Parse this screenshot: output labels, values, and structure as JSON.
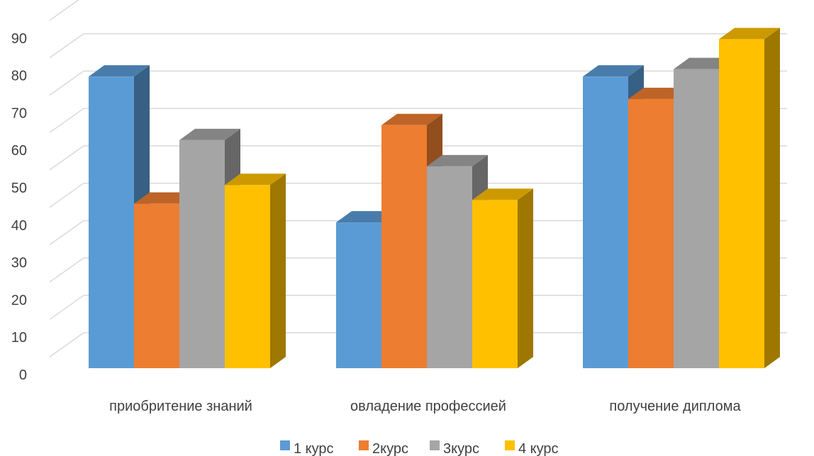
{
  "chart_data": {
    "type": "bar",
    "title": "",
    "xlabel": "",
    "ylabel": "",
    "ylim": [
      0,
      90
    ],
    "yticks": [
      0,
      10,
      20,
      30,
      40,
      50,
      60,
      70,
      80,
      90
    ],
    "grid": true,
    "legend_position": "bottom",
    "style": "3d-clustered-column",
    "categories": [
      "приобритение знаний",
      "овладение профессией",
      "получение диплома"
    ],
    "series": [
      {
        "name": "1 курс",
        "values": [
          78,
          39,
          78
        ],
        "color": "#5B9BD5"
      },
      {
        "name": "2курс",
        "values": [
          44,
          65,
          72
        ],
        "color": "#ED7D31"
      },
      {
        "name": "3курс",
        "values": [
          61,
          54,
          80
        ],
        "color": "#A5A5A5"
      },
      {
        "name": "4 курс",
        "values": [
          49,
          45,
          88
        ],
        "color": "#FFC000"
      }
    ]
  }
}
